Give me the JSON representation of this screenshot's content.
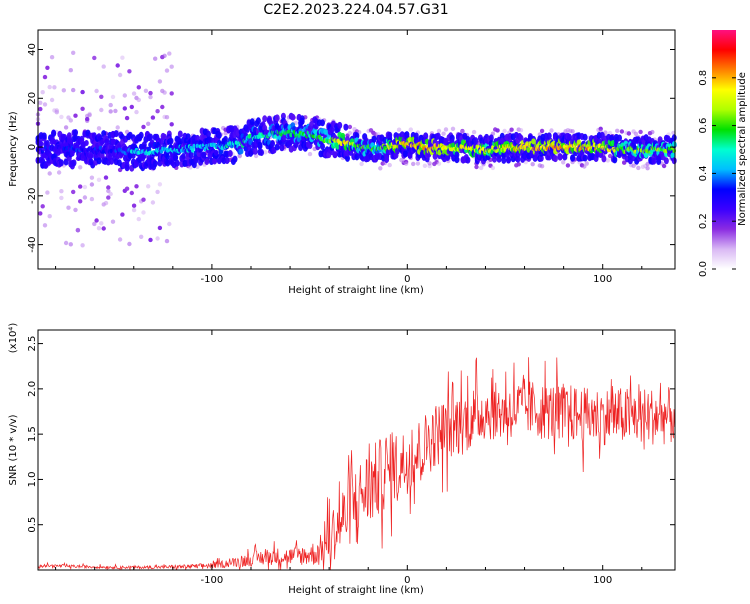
{
  "title": "C2E2.2023.224.04.57.G31",
  "chart_data": [
    {
      "type": "heatmap",
      "xlabel": "Height of straight line (km)",
      "ylabel": "Frequency (Hz)",
      "xlim": [
        -189,
        137
      ],
      "ylim": [
        -50,
        48
      ],
      "x_ticks": [
        -100,
        0,
        100
      ],
      "x_tick_labels": [
        "-100",
        "0",
        "100"
      ],
      "y_ticks": [
        -40,
        -20,
        0,
        20,
        40
      ],
      "y_tick_labels": [
        "-40",
        "-20",
        "0",
        "20",
        "40"
      ],
      "colorbar": {
        "label": "Normalized spectral amplitude",
        "range": [
          0,
          1
        ],
        "ticks": [
          0,
          0.2,
          0.4,
          0.6,
          0.8
        ],
        "tick_labels": [
          "0.0",
          "0.2",
          "0.4",
          "0.6",
          "0.8"
        ],
        "colors": [
          "#ffffff",
          "#d9b8f4",
          "#8a2be2",
          "#3a00ff",
          "#0000ff",
          "#00bfff",
          "#00ffd0",
          "#00e000",
          "#b0ff00",
          "#ffff00",
          "#ff8000",
          "#ff0000",
          "#ff1080"
        ]
      },
      "ridge": {
        "x": [
          -189,
          -170,
          -150,
          -140,
          -120,
          -100,
          -85,
          -80,
          -70,
          -60,
          -50,
          -40,
          -32,
          -25,
          -15,
          -5,
          0,
          10,
          20,
          40,
          60,
          80,
          100,
          110,
          120,
          137
        ],
        "frequency": [
          -1,
          -1,
          -1,
          -2,
          -1,
          0,
          1,
          4,
          5,
          6,
          5,
          3,
          2,
          0,
          -1,
          1,
          1,
          0,
          0,
          -1,
          0,
          0,
          0,
          -1,
          -1,
          -1
        ],
        "amplitude": [
          0.3,
          0.32,
          0.3,
          0.45,
          0.45,
          0.45,
          0.5,
          0.5,
          0.5,
          0.55,
          0.55,
          0.6,
          0.75,
          0.6,
          0.55,
          0.75,
          0.8,
          0.8,
          0.75,
          0.7,
          0.8,
          0.8,
          0.75,
          0.65,
          0.65,
          0.6
        ]
      }
    },
    {
      "type": "line",
      "xlabel": "Height of straight line (km)",
      "ylabel": "SNR (10 * v/v)",
      "scale_label": "(x10⁴)",
      "xlim": [
        -189,
        137
      ],
      "ylim": [
        0,
        2.65
      ],
      "x_ticks": [
        -100,
        0,
        100
      ],
      "x_tick_labels": [
        "-100",
        "0",
        "100"
      ],
      "y_ticks": [
        0.5,
        1.0,
        1.5,
        2.0,
        2.5
      ],
      "y_tick_labels": [
        "0.5",
        "1.0",
        "1.5",
        "2.0",
        "2.5"
      ],
      "color": "#ee2222",
      "series": [
        {
          "x": [
            -189,
            -170,
            -150,
            -130,
            -110,
            -100,
            -90,
            -80,
            -70,
            -60,
            -50,
            -45,
            -40,
            -35,
            -30,
            -25,
            -20,
            -15,
            -10,
            -5,
            0,
            5,
            10,
            15,
            20,
            25,
            30,
            40,
            50,
            60,
            70,
            80,
            90,
            100,
            110,
            120,
            130,
            137
          ],
          "values": [
            0.05,
            0.04,
            0.03,
            0.03,
            0.04,
            0.05,
            0.08,
            0.12,
            0.15,
            0.15,
            0.17,
            0.2,
            0.35,
            0.5,
            0.65,
            0.8,
            0.9,
            1.0,
            1.1,
            1.15,
            1.2,
            1.3,
            1.4,
            1.5,
            1.55,
            1.6,
            1.65,
            1.75,
            1.75,
            1.8,
            1.75,
            1.75,
            1.7,
            1.7,
            1.7,
            1.7,
            1.7,
            1.7
          ],
          "noise": [
            0.02,
            0.02,
            0.02,
            0.02,
            0.03,
            0.04,
            0.06,
            0.1,
            0.12,
            0.12,
            0.15,
            0.2,
            0.35,
            0.45,
            0.5,
            0.5,
            0.55,
            0.55,
            0.5,
            0.5,
            0.45,
            0.45,
            0.45,
            0.45,
            0.45,
            0.45,
            0.45,
            0.4,
            0.4,
            0.4,
            0.4,
            0.4,
            0.4,
            0.4,
            0.4,
            0.4,
            0.4,
            0.4
          ]
        }
      ]
    }
  ]
}
